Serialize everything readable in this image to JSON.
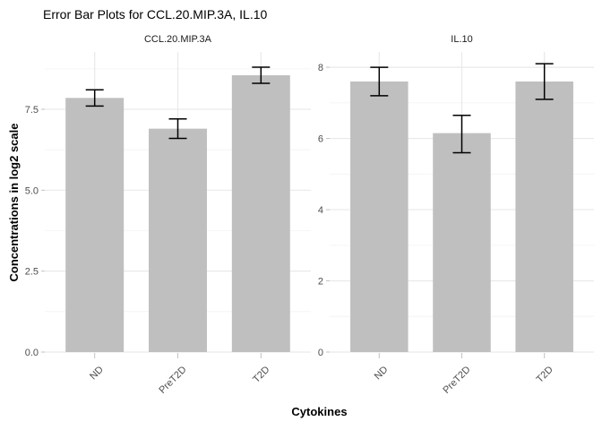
{
  "figure": {
    "title": "Error Bar Plots for CCL.20.MIP.3A, IL.10",
    "x_axis_title": "Cytokines",
    "y_axis_title": "Concentrations in log2 scale"
  },
  "chart_data": {
    "type": "bar",
    "title": "Error Bar Plots for CCL.20.MIP.3A, IL.10",
    "xlabel": "Cytokines",
    "ylabel": "Concentrations in log2 scale",
    "categories": [
      "ND",
      "PreT2D",
      "T2D"
    ],
    "grid": true,
    "legend": false,
    "facets": [
      {
        "label": "CCL.20.MIP.3A",
        "values": [
          7.85,
          6.9,
          8.55
        ],
        "error_low": [
          7.6,
          6.6,
          8.3
        ],
        "error_high": [
          8.1,
          7.2,
          8.8
        ],
        "ylim": [
          0,
          9.27
        ],
        "y_major_ticks": [
          0,
          2.5,
          5,
          7.5
        ],
        "y_tick_labels": [
          "0.0",
          "2.5",
          "5.0",
          "7.5"
        ],
        "y_minor_ticks": [
          1.25,
          3.75,
          6.25,
          8.75
        ]
      },
      {
        "label": "IL.10",
        "values": [
          7.6,
          6.15,
          7.6
        ],
        "error_low": [
          7.2,
          5.6,
          7.1
        ],
        "error_high": [
          8.0,
          6.65,
          8.1
        ],
        "ylim": [
          0,
          8.43
        ],
        "y_major_ticks": [
          0,
          2,
          4,
          6,
          8
        ],
        "y_tick_labels": [
          "0",
          "2",
          "4",
          "6",
          "8"
        ],
        "y_minor_ticks": [
          1,
          3,
          5,
          7
        ]
      }
    ]
  },
  "colors": {
    "background": "#ffffff",
    "bar_fill": "#bfbfbf",
    "grid_major": "#e9e9e9",
    "grid_minor": "#f4f4f4",
    "axis_text": "#4d4d4d",
    "tick_mark": "#c2c2c2",
    "error_bar": "#000000",
    "title_text": "#000000",
    "strip_text": "#1a1a1a"
  }
}
